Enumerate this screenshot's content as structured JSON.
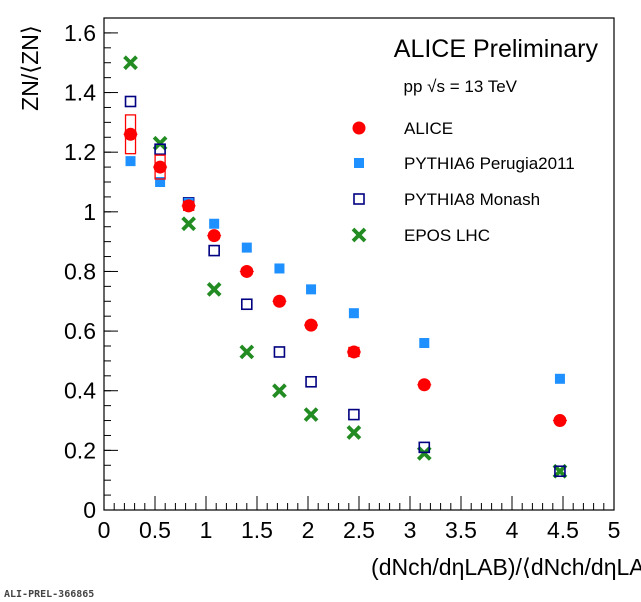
{
  "chart_data": {
    "type": "scatter",
    "title": "ALICE Preliminary",
    "subtitle": "pp √s = 13 TeV",
    "xlabel": "(dNch/dηLAB)/⟨dNch/dηLAB⟩",
    "ylabel": "ZN/⟨ZN⟩",
    "xlim": [
      0,
      5
    ],
    "ylim": [
      0,
      1.65
    ],
    "x_ticks": [
      "0",
      "0.5",
      "1",
      "1.5",
      "2",
      "2.5",
      "3",
      "3.5",
      "4",
      "4.5",
      "5"
    ],
    "y_ticks": [
      "0",
      "0.2",
      "0.4",
      "0.6",
      "0.8",
      "1",
      "1.2",
      "1.4",
      "1.6"
    ],
    "legend_position": "top-right",
    "footer_id": "ALI-PREL-366865",
    "series": [
      {
        "name": "ALICE",
        "color": "#ff0000",
        "marker": "filled-circle",
        "x": [
          0.26,
          0.55,
          0.83,
          1.08,
          1.4,
          1.72,
          2.03,
          2.45,
          3.14,
          4.47
        ],
        "y": [
          1.26,
          1.15,
          1.02,
          0.92,
          0.8,
          0.7,
          0.62,
          0.53,
          0.42,
          0.3
        ],
        "syst": [
          0.065,
          0.04,
          0.015,
          0.01,
          0.01,
          0.01,
          0.01,
          0.015,
          0.01,
          0.008
        ]
      },
      {
        "name": "PYTHIA6 Perugia2011",
        "color": "#1e90ff",
        "marker": "filled-square",
        "x": [
          0.26,
          0.55,
          0.83,
          1.08,
          1.4,
          1.72,
          2.03,
          2.45,
          3.14,
          4.47
        ],
        "y": [
          1.17,
          1.1,
          1.03,
          0.96,
          0.88,
          0.81,
          0.74,
          0.66,
          0.56,
          0.44
        ]
      },
      {
        "name": "PYTHIA8 Monash",
        "color": "#000080",
        "marker": "open-square",
        "x": [
          0.26,
          0.55,
          0.83,
          1.08,
          1.4,
          1.72,
          2.03,
          2.45,
          3.14,
          4.47
        ],
        "y": [
          1.37,
          1.21,
          1.03,
          0.87,
          0.69,
          0.53,
          0.43,
          0.32,
          0.21,
          0.13
        ]
      },
      {
        "name": "EPOS LHC",
        "color": "#228b22",
        "marker": "cross",
        "x": [
          0.26,
          0.55,
          0.83,
          1.08,
          1.4,
          1.72,
          2.03,
          2.45,
          3.14,
          4.47
        ],
        "y": [
          1.5,
          1.23,
          0.96,
          0.74,
          0.53,
          0.4,
          0.32,
          0.26,
          0.19,
          0.13
        ]
      }
    ]
  }
}
